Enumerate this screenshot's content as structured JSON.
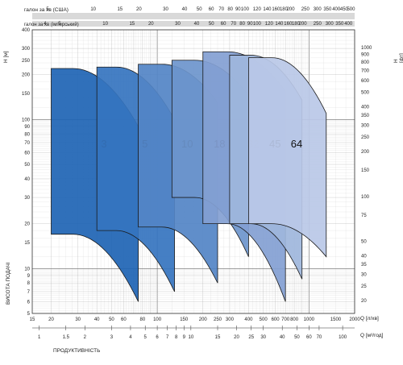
{
  "chart_data": {
    "type": "line",
    "x_scale": "log",
    "y_scale": "log",
    "xlim": [
      15,
      2000
    ],
    "ylim": [
      5,
      400
    ],
    "x_bottom": {
      "label": "Q [л/хв]",
      "ticks": [
        15,
        20,
        30,
        40,
        50,
        60,
        80,
        100,
        150,
        200,
        250,
        300,
        400,
        500,
        600,
        700,
        800,
        1000,
        1500,
        2000
      ]
    },
    "x_m3h": {
      "label": "Q [м³/год]",
      "ticks": [
        1,
        1.5,
        2,
        3,
        4,
        5,
        6,
        7,
        8,
        9,
        10,
        15,
        20,
        25,
        30,
        40,
        50,
        60,
        70,
        100
      ]
    },
    "x_us_gpm": {
      "label": "галон за хв (США)",
      "ticks": [
        5,
        10,
        15,
        20,
        30,
        40,
        50,
        60,
        70,
        80,
        90,
        100,
        120,
        140,
        160,
        180,
        200,
        250,
        300,
        350,
        400,
        450,
        500
      ]
    },
    "x_imp_gpm": {
      "label": "галон за хв (імперський)",
      "ticks": [
        4,
        5,
        10,
        15,
        20,
        30,
        40,
        50,
        60,
        70,
        80,
        90,
        100,
        120,
        140,
        160,
        180,
        200,
        250,
        300,
        350,
        400
      ]
    },
    "y_left": {
      "label": "H [м]",
      "ticks": [
        5,
        6,
        7,
        8,
        9,
        10,
        15,
        20,
        30,
        40,
        50,
        60,
        70,
        80,
        90,
        100,
        150,
        200,
        250,
        300,
        400
      ]
    },
    "y_right": {
      "label": "H [фт]",
      "ticks": [
        20,
        25,
        30,
        35,
        40,
        50,
        75,
        100,
        150,
        200,
        250,
        300,
        350,
        400,
        500,
        600,
        700,
        800,
        900,
        1000
      ]
    },
    "y_side_label": "ВИСОТА ПОДАЧІ",
    "x_side_label": "ПРОДУКТИВНІСТЬ",
    "series": [
      {
        "name": "3",
        "color": "#1e64b4",
        "q_min": 20,
        "q_max": 75,
        "h_top_min": 220,
        "h_max_flow_top": 90,
        "h_bot_min": 17,
        "h_bot_max": 6.0,
        "flat_frac": 0.25
      },
      {
        "name": "5",
        "color": "#3574bf",
        "q_min": 40,
        "q_max": 130,
        "h_top_min": 225,
        "h_max_flow_top": 100,
        "h_bot_min": 18,
        "h_bot_max": 7.0,
        "flat_frac": 0.25
      },
      {
        "name": "10",
        "color": "#5284c6",
        "q_min": 75,
        "q_max": 250,
        "h_top_min": 235,
        "h_max_flow_top": 130,
        "h_bot_min": 19,
        "h_bot_max": 8.0,
        "flat_frac": 0.3
      },
      {
        "name": "18",
        "color": "#6c95cc",
        "q_min": 125,
        "q_max": 400,
        "h_top_min": 250,
        "h_max_flow_top": 145,
        "h_bot_min": 30,
        "h_bot_max": 12,
        "flat_frac": 0.3
      },
      {
        "name": "32",
        "color": "#839fd2",
        "q_min": 200,
        "q_max": 700,
        "h_top_min": 285,
        "h_max_flow_top": 155,
        "h_bot_min": 20,
        "h_bot_max": 6.0,
        "flat_frac": 0.3
      },
      {
        "name": "45",
        "color": "#9eb6dc",
        "q_min": 300,
        "q_max": 900,
        "h_top_min": 270,
        "h_max_flow_top": 135,
        "h_bot_min": 20,
        "h_bot_max": 8.5,
        "flat_frac": 0.3
      },
      {
        "name": "64",
        "color": "#bac8e7",
        "q_min": 400,
        "q_max": 1300,
        "h_top_min": 260,
        "h_max_flow_top": 110,
        "h_bot_min": 20,
        "h_bot_max": 12,
        "flat_frac": 0.3
      }
    ]
  }
}
